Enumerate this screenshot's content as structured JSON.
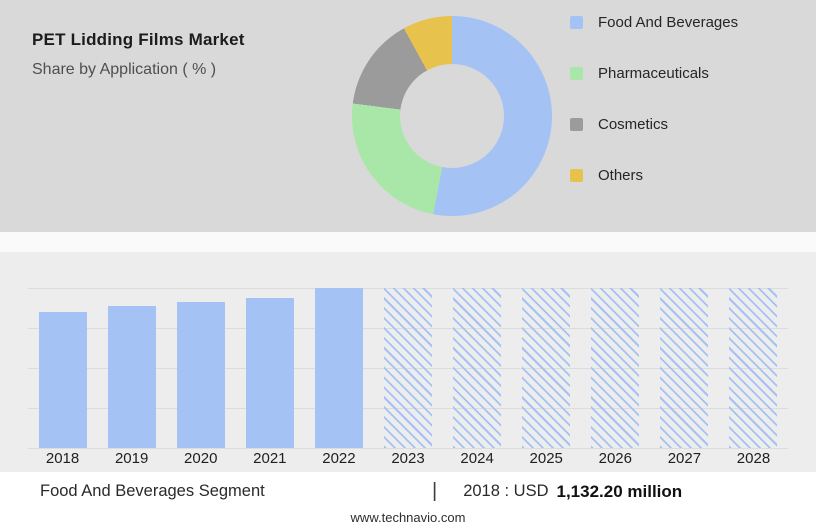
{
  "header": {
    "title": "PET Lidding Films Market",
    "subtitle": "Share by Application ( % )"
  },
  "footer": {
    "segment_label": "Food And Beverages Segment",
    "separator": "|",
    "value_prefix": "2018 : USD",
    "value_bold": "1,132.20 million",
    "website": "www.technavio.com"
  },
  "chart_data": [
    {
      "type": "pie",
      "donut": true,
      "title": "PET Lidding Films Market",
      "subtitle": "Share by Application ( % )",
      "labels": [
        "Food And Beverages",
        "Pharmaceuticals",
        "Cosmetics",
        "Others"
      ],
      "values": [
        53,
        24,
        15,
        8
      ],
      "colors": [
        "#a4c2f4",
        "#a9e7a9",
        "#9b9b9b",
        "#e7c24d"
      ],
      "legend_position": "right"
    },
    {
      "type": "bar",
      "title": "Food And Beverages Segment",
      "categories": [
        "2018",
        "2019",
        "2020",
        "2021",
        "2022",
        "2023",
        "2024",
        "2025",
        "2026",
        "2027",
        "2028"
      ],
      "bar_color": "#a4c2f4",
      "bars": [
        {
          "year": "2018",
          "height_pct": 85,
          "style": "solid"
        },
        {
          "year": "2019",
          "height_pct": 89,
          "style": "solid"
        },
        {
          "year": "2020",
          "height_pct": 91,
          "style": "solid"
        },
        {
          "year": "2021",
          "height_pct": 94,
          "style": "solid"
        },
        {
          "year": "2022",
          "height_pct": 100,
          "style": "solid"
        },
        {
          "year": "2023",
          "height_pct": 100,
          "style": "hatched"
        },
        {
          "year": "2024",
          "height_pct": 100,
          "style": "hatched"
        },
        {
          "year": "2025",
          "height_pct": 100,
          "style": "hatched"
        },
        {
          "year": "2026",
          "height_pct": 100,
          "style": "hatched"
        },
        {
          "year": "2027",
          "height_pct": 100,
          "style": "hatched"
        },
        {
          "year": "2028",
          "height_pct": 100,
          "style": "hatched"
        }
      ],
      "grid": true,
      "annotation": "2018 : USD 1,132.20 million",
      "xlabel": "",
      "ylabel": ""
    }
  ]
}
